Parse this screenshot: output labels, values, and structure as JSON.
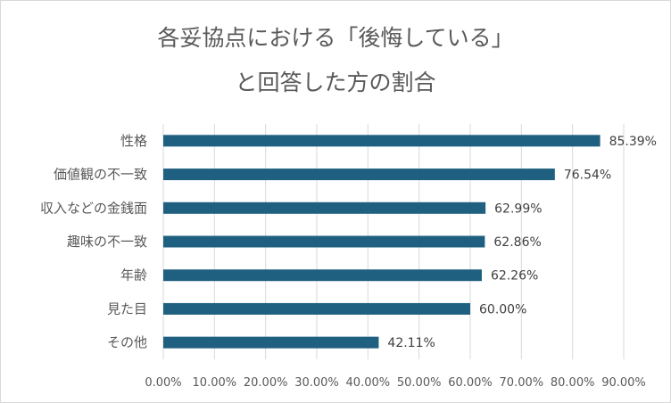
{
  "chart_data": {
    "type": "bar",
    "orientation": "horizontal",
    "title_lines": [
      "各妥協点における「後悔している」",
      "と回答した方の割合"
    ],
    "categories": [
      "性格",
      "価値観の不一致",
      "収入などの金銭面",
      "趣味の不一致",
      "年齢",
      "見た目",
      "その他"
    ],
    "values": [
      85.39,
      76.54,
      62.99,
      62.86,
      62.26,
      60.0,
      42.11
    ],
    "value_labels": [
      "85.39%",
      "76.54%",
      "62.99%",
      "62.86%",
      "62.26%",
      "60.00%",
      "42.11%"
    ],
    "x_ticks": [
      "0.00%",
      "10.00%",
      "20.00%",
      "30.00%",
      "40.00%",
      "50.00%",
      "60.00%",
      "70.00%",
      "80.00%",
      "90.00%"
    ],
    "xlim": [
      0,
      90
    ],
    "grid": true,
    "legend": "none",
    "bar_color": "#1f5f7f"
  }
}
